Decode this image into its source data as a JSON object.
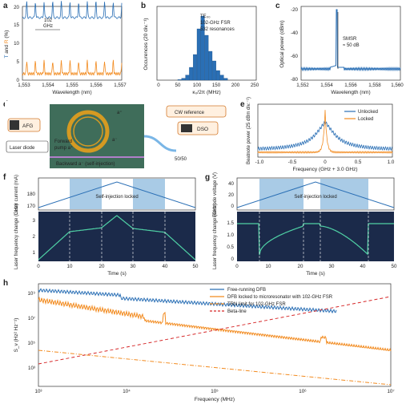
{
  "panels": {
    "a": {
      "label": "a",
      "ylabel": "T and R (%)",
      "xlabel": "Wavelength (nm)",
      "yticks": [
        "0",
        "5",
        "10",
        "15",
        "20"
      ],
      "xticks": [
        "1,553",
        "1,554",
        "1,555",
        "1,556",
        "1,557"
      ],
      "annotation": "102\nGHz"
    },
    "b": {
      "label": "b",
      "ylabel": "Occurences (20 div.⁻¹)",
      "xlabel": "κ₀/2π (MHz)",
      "xticks": [
        "0",
        "50",
        "100",
        "150",
        "200",
        "250"
      ],
      "annot1": "TE₀₀",
      "annot2": "102-GHz FSR",
      "annot3": "532 resonances"
    },
    "c": {
      "label": "c",
      "ylabel": "Optical power (dBm)",
      "xlabel": "Wavelength (nm)",
      "yticks": [
        "-20",
        "-40",
        "-60",
        "-80"
      ],
      "xticks": [
        "1,552",
        "1,554",
        "1,556",
        "1,558",
        "1,560"
      ],
      "annot1": "SMSR",
      "annot2": "≈ 50 dB"
    },
    "d": {
      "label": "d",
      "afg": "AFG",
      "laser": "Laser diode",
      "forward": "Forward",
      "pump": "pump a⁺",
      "backward": "Backward a⁻ (self-injection)",
      "cw": "CW reference",
      "dso": "DSO",
      "split": "50/50",
      "aplus": "a⁺",
      "aminus": "a⁻"
    },
    "e": {
      "label": "e",
      "ylabel": "Beatnote power (25 dBm div.⁻¹)",
      "xlabel": "Frequency (GHz + 3.0 GHz)",
      "xticks": [
        "-1.0",
        "-0.5",
        "0",
        "0.5",
        "1.0"
      ],
      "legend": [
        "Unlocked",
        "Locked"
      ]
    },
    "f": {
      "label": "f",
      "ylabel_top": "Laser current (mA)",
      "ylabel_bot": "Laser frequency change (GHz)",
      "yticks_top": [
        "170",
        "180"
      ],
      "yticks_bot": [
        "1",
        "2",
        "3"
      ],
      "xticks": [
        "0",
        "10",
        "20",
        "30",
        "40",
        "50"
      ],
      "xlabel": "Time (s)",
      "annotation": "Self-injection locked"
    },
    "g": {
      "label": "g",
      "ylabel_top": "Electrode voltage (V)",
      "ylabel_bot": "Laser frequency change (GHz)",
      "yticks_top": [
        "0",
        "20",
        "40"
      ],
      "yticks_bot": [
        "0",
        "0.5",
        "1.0",
        "1.5"
      ],
      "xticks": [
        "0",
        "10",
        "20",
        "30",
        "40",
        "50"
      ],
      "xlabel": "Time (s)",
      "annotation": "Self-injection locked"
    },
    "h": {
      "label": "h",
      "ylabel": "S_ν (Hz² Hz⁻¹)",
      "xlabel": "Frequency (MHz)",
      "yticks": [
        "10⁹",
        "10⁷",
        "10⁵",
        "10³"
      ],
      "xticks": [
        "10³",
        "10⁴",
        "10⁵",
        "10⁶",
        "10⁷"
      ],
      "legend": [
        "Free-running DFB",
        "DFB locked to microresonator with 102-GHz FSR",
        "TRN limit for 102-GHz FSR",
        "Beta-line"
      ]
    }
  },
  "colors": {
    "blue": "#2a6fb5",
    "orange": "#f28a1e",
    "red": "#d62728",
    "lightblue": "#a9cbe6"
  },
  "chart_data": [
    {
      "type": "line",
      "panel": "a",
      "x_range": [
        1553,
        1557
      ],
      "ylim": [
        0,
        20
      ],
      "series": [
        {
          "values_hint": "transmission ~17-19 with dips"
        },
        {
          "values_hint": "reflection ~1-5 with peaks"
        }
      ]
    },
    {
      "type": "bar",
      "panel": "b",
      "categories": [
        50,
        60,
        70,
        80,
        90,
        100,
        110,
        120,
        130,
        140,
        150,
        160,
        170
      ],
      "values": [
        1,
        3,
        8,
        20,
        40,
        80,
        100,
        70,
        45,
        30,
        15,
        8,
        3
      ]
    },
    {
      "type": "line",
      "panel": "c",
      "x_range": [
        1552,
        1560
      ],
      "ylim": [
        -80,
        -20
      ],
      "peak": {
        "x": 1555.3,
        "y": -21
      }
    },
    {
      "type": "line",
      "panel": "h",
      "x_range": [
        1000,
        10000000
      ],
      "log_x": true,
      "log_y": true
    }
  ]
}
